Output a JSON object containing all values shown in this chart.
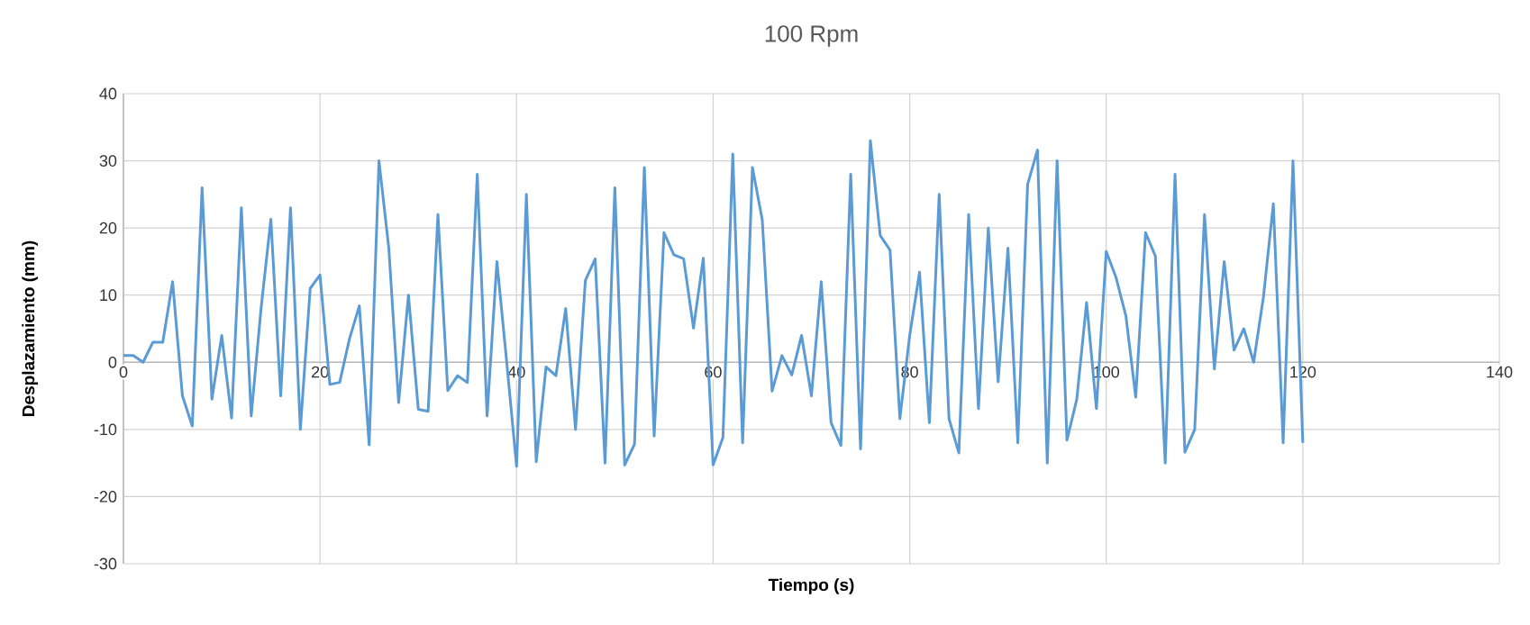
{
  "chart_data": {
    "type": "line",
    "title": "100 Rpm",
    "xlabel": "Tiempo (s)",
    "ylabel": "Desplazamiento (mm)",
    "x": [
      0,
      1,
      2,
      3,
      4,
      5,
      6,
      7,
      8,
      9,
      10,
      11,
      12,
      13,
      14,
      15,
      16,
      17,
      18,
      19,
      20,
      21,
      22,
      23,
      24,
      25,
      26,
      27,
      28,
      29,
      30,
      31,
      32,
      33,
      34,
      35,
      36,
      37,
      38,
      39,
      40,
      41,
      42,
      43,
      44,
      45,
      46,
      47,
      48,
      49,
      50,
      51,
      52,
      53,
      54,
      55,
      56,
      57,
      58,
      59,
      60,
      61,
      62,
      63,
      64,
      65,
      66,
      67,
      68,
      69,
      70,
      71,
      72,
      73,
      74,
      75,
      76,
      77,
      78,
      79,
      80,
      81,
      82,
      83,
      84,
      85,
      86,
      87,
      88,
      89,
      90,
      91,
      92,
      93,
      94,
      95,
      96,
      97,
      98,
      99,
      100,
      101,
      102,
      103,
      104,
      105,
      106,
      107,
      108,
      109,
      110,
      111,
      112,
      113,
      114,
      115,
      116,
      117,
      118,
      119,
      120
    ],
    "series": [
      {
        "color": "#5b9bd5",
        "values": [
          1,
          1,
          0,
          3,
          3,
          12,
          -5,
          -9.5,
          26,
          -5.5,
          4,
          -8.3,
          23,
          -8,
          8,
          21.3,
          -5,
          23,
          -10,
          11,
          13,
          -3.3,
          -3,
          3.5,
          8.4,
          -12.3,
          30,
          17,
          -6,
          10,
          -7,
          -7.3,
          22,
          -4.2,
          -2,
          -3,
          28,
          -8,
          15,
          0,
          -15.5,
          25,
          -14.8,
          -0.7,
          -2,
          8,
          -10,
          12.2,
          15.4,
          -15,
          26,
          -15.3,
          -12.2,
          29,
          -11,
          19.3,
          16,
          15.4,
          5.1,
          15.5,
          -15.3,
          -11.2,
          31,
          -12,
          29,
          21.2,
          -4.3,
          1,
          -1.9,
          4,
          -5,
          12,
          -9,
          -12.4,
          28,
          -12.9,
          33,
          18.9,
          16.7,
          -8.4,
          4,
          13.4,
          -9,
          25,
          -8.4,
          -13.5,
          22,
          -6.9,
          20,
          -2.9,
          17,
          -12,
          26.5,
          31.6,
          -15,
          30,
          -11.6,
          -5.5,
          8.9,
          -6.9,
          16.5,
          12.6,
          6.9,
          -5.2,
          19.3,
          15.8,
          -15,
          28,
          -13.4,
          -10,
          22,
          -1,
          15,
          1.8,
          5,
          0,
          9.8,
          23.6,
          -12,
          30,
          -12
        ]
      }
    ],
    "xlim": [
      0,
      140
    ],
    "ylim": [
      -30,
      40
    ],
    "xticks": [
      0,
      20,
      40,
      60,
      80,
      100,
      120,
      140
    ],
    "yticks": [
      -30,
      -20,
      -10,
      0,
      10,
      20,
      30,
      40
    ],
    "grid": true
  }
}
